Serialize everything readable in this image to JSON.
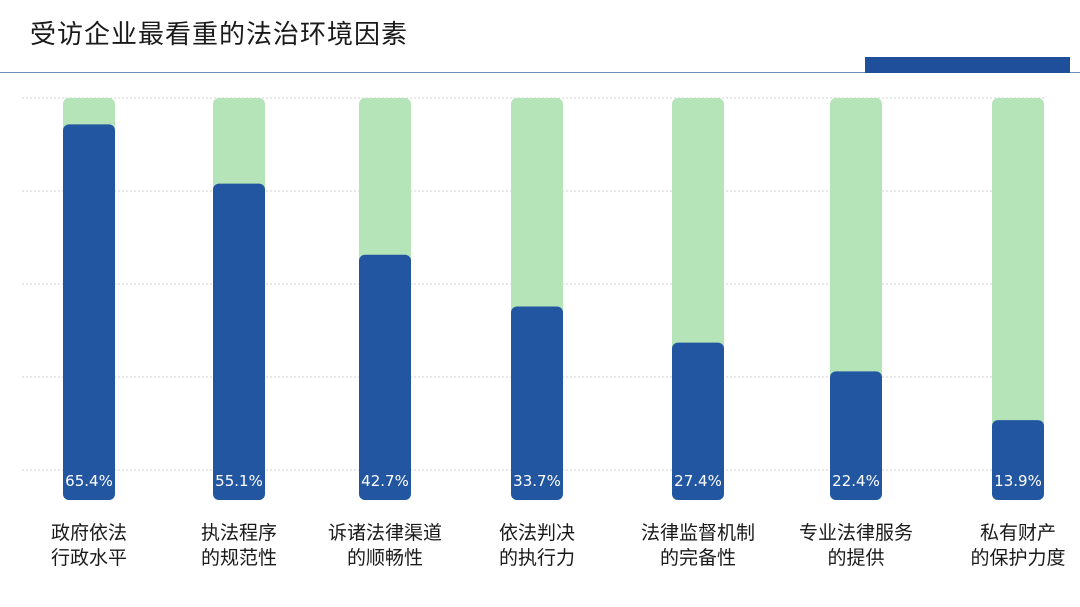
{
  "title": "受访企业最看重的法治环境因素",
  "colors": {
    "accent": "#1f4e9a",
    "bar_fill": "#2356a1",
    "bar_track": "#b5e4b9",
    "grid": "#d0d0d0",
    "label_text": "#ffffff"
  },
  "chart_data": {
    "type": "bar",
    "title": "受访企业最看重的法治环境因素",
    "xlabel": "",
    "ylabel": "",
    "ylim": [
      0,
      70
    ],
    "grid": true,
    "unit": "%",
    "categories": [
      [
        "政府依法",
        "行政水平"
      ],
      [
        "执法程序",
        "的规范性"
      ],
      [
        "诉诸法律渠道",
        "的顺畅性"
      ],
      [
        "依法判决",
        "的执行力"
      ],
      [
        "法律监督机制",
        "的完备性"
      ],
      [
        "专业法律服务",
        "的提供"
      ],
      [
        "私有财产",
        "的保护力度"
      ]
    ],
    "values": [
      65.4,
      55.1,
      42.7,
      33.7,
      27.4,
      22.4,
      13.9
    ],
    "data_labels": [
      "65.4%",
      "55.1%",
      "42.7%",
      "33.7%",
      "27.4%",
      "22.4%",
      "13.9%"
    ]
  }
}
